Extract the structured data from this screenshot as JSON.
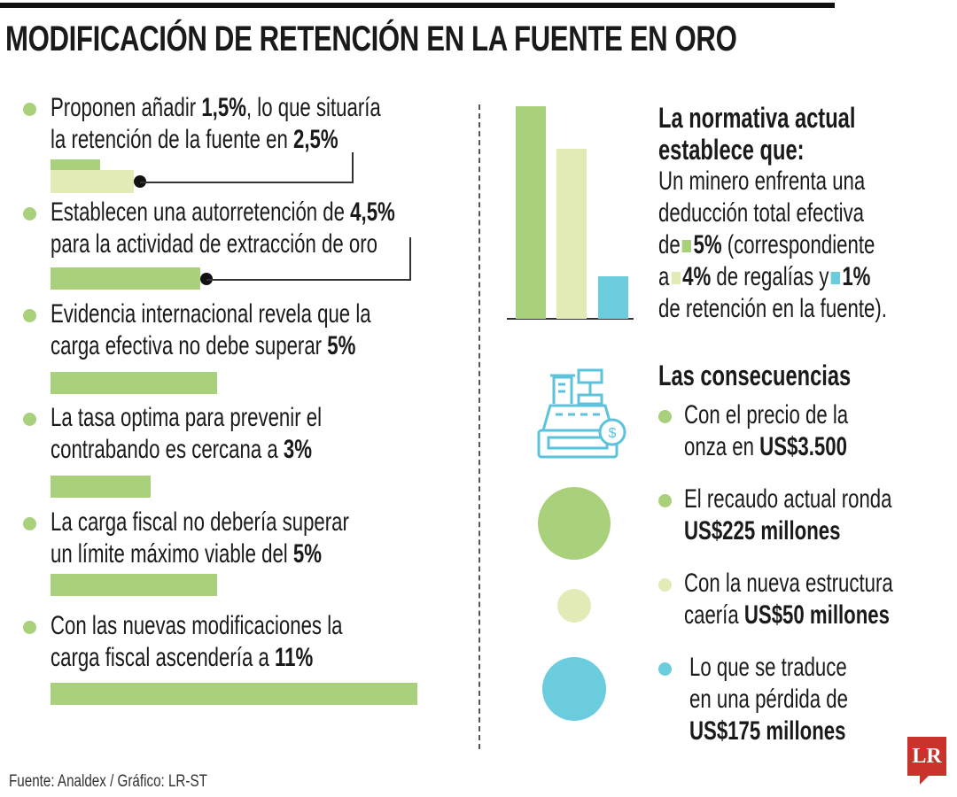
{
  "title": "MODIFICACIÓN DE RETENCIÓN EN LA FUENTE EN ORO",
  "colors": {
    "green": "#a9d07a",
    "light_green": "#e2ebb5",
    "cyan": "#6accdc",
    "logo_red": "#c8342c"
  },
  "left_items": [
    {
      "lines": [
        [
          {
            "t": "Proponen añadir "
          },
          {
            "t": "1,5%",
            "b": true
          },
          {
            "t": ", lo que situaría"
          }
        ],
        [
          {
            "t": "la retención de la fuente en "
          },
          {
            "t": "2,5%",
            "b": true
          }
        ]
      ]
    },
    {
      "lines": [
        [
          {
            "t": "Establecen una autorretención de "
          },
          {
            "t": "4,5%",
            "b": true
          }
        ],
        [
          {
            "t": "para la actividad de extracción de oro"
          }
        ]
      ]
    },
    {
      "lines": [
        [
          {
            "t": "Evidencia internacional revela que la"
          }
        ],
        [
          {
            "t": "carga efectiva no debe superar "
          },
          {
            "t": "5%",
            "b": true
          }
        ]
      ]
    },
    {
      "lines": [
        [
          {
            "t": "La tasa optima para prevenir el"
          }
        ],
        [
          {
            "t": "contrabando es cercana a "
          },
          {
            "t": "3%",
            "b": true
          }
        ]
      ]
    },
    {
      "lines": [
        [
          {
            "t": "La carga fiscal no debería superar"
          }
        ],
        [
          {
            "t": "un límite máximo viable del "
          },
          {
            "t": "5%",
            "b": true
          }
        ]
      ]
    },
    {
      "lines": [
        [
          {
            "t": "Con las nuevas modificaciones la"
          }
        ],
        [
          {
            "t": "carga fiscal ascendería a "
          },
          {
            "t": "11%",
            "b": true
          }
        ]
      ]
    }
  ],
  "normativa": {
    "heading": [
      "La normativa actual",
      "establece que:"
    ],
    "lines": [
      [
        {
          "t": "Un minero enfrenta una"
        }
      ],
      [
        {
          "t": "deducción total efectiva"
        }
      ],
      [
        {
          "t": "de"
        },
        {
          "sq": "green"
        },
        {
          "t": "5%",
          "b": true
        },
        {
          "t": " (correspondiente"
        }
      ],
      [
        {
          "t": "a"
        },
        {
          "sq": "light_green"
        },
        {
          "t": "4%",
          "b": true
        },
        {
          "t": " de regalías y"
        },
        {
          "sq": "cyan"
        },
        {
          "t": "1%",
          "b": true
        }
      ],
      [
        {
          "t": "de retención en la fuente)."
        }
      ]
    ]
  },
  "consecuencias": {
    "heading": "Las consecuencias",
    "icon": "cash-register-icon",
    "items": [
      {
        "color": "green",
        "lines": [
          [
            {
              "t": "Con el precio de la"
            }
          ],
          [
            {
              "t": "onza en "
            },
            {
              "t": "US$3.500",
              "b": true
            }
          ]
        ]
      },
      {
        "color": "green",
        "lines": [
          [
            {
              "t": "El recaudo actual ronda"
            }
          ],
          [
            {
              "t": "US$225 millones",
              "b": true
            }
          ]
        ]
      },
      {
        "color": "light_green",
        "lines": [
          [
            {
              "t": "Con la nueva estructura"
            }
          ],
          [
            {
              "t": "caería "
            },
            {
              "t": "US$50 millones",
              "b": true
            }
          ]
        ]
      },
      {
        "color": "cyan",
        "lines": [
          [
            {
              "t": "Lo que se traduce"
            }
          ],
          [
            {
              "t": "en una pérdida de"
            }
          ],
          [
            {
              "t": "US$175 millones",
              "b": true
            }
          ]
        ]
      }
    ]
  },
  "footer": "Fuente: Analdex / Gráfico: LR-ST",
  "logo": "LR",
  "chart_data": [
    {
      "type": "bar",
      "orientation": "horizontal",
      "unit": "%",
      "values": [
        1.5,
        2.5,
        4.5,
        5,
        3,
        5,
        11
      ],
      "colors": [
        "green",
        "light_green",
        "green",
        "green",
        "green",
        "green",
        "green"
      ]
    },
    {
      "type": "bar",
      "categories": [
        "Total",
        "Regalías",
        "Retención en la fuente"
      ],
      "values": [
        5,
        4,
        1
      ],
      "unit": "%",
      "colors": [
        "green",
        "light_green",
        "cyan"
      ]
    },
    {
      "type": "bubble",
      "values": [
        225,
        50,
        175
      ],
      "unit": "US$ millones",
      "colors": [
        "green",
        "light_green",
        "cyan"
      ]
    }
  ]
}
